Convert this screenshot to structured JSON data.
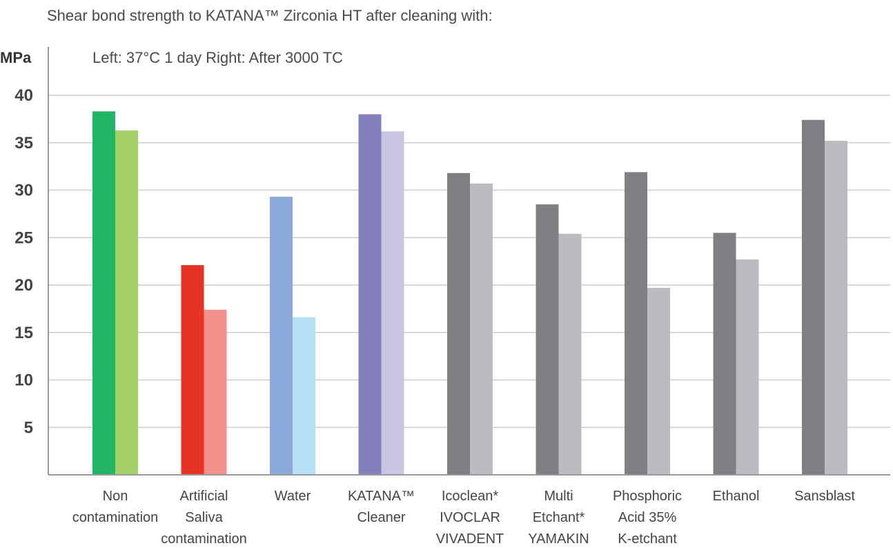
{
  "chart_data": {
    "type": "bar",
    "title": "Shear bond strength to  KATANA™ Zirconia HT after cleaning with:",
    "subtitle": "Left: 37°C 1 day   Right: After 3000 TC",
    "ylabel": "MPa",
    "xlabel": "",
    "ylim": [
      0,
      45
    ],
    "yticks": [
      5,
      10,
      15,
      20,
      25,
      30,
      35,
      40
    ],
    "grid": true,
    "legend": "none",
    "categories": [
      [
        "Non",
        "contamination"
      ],
      [
        "Artificial",
        "Saliva",
        "contamination"
      ],
      [
        "Water"
      ],
      [
        "KATANA™",
        "Cleaner"
      ],
      [
        "Icoclean*",
        "IVOCLAR",
        "VIVADENT"
      ],
      [
        "Multi",
        "Etchant*",
        "YAMAKIN"
      ],
      [
        "Phosphoric",
        "Acid 35%",
        "K-etchant"
      ],
      [
        "Ethanol"
      ],
      [
        "Sansblast"
      ]
    ],
    "series": [
      {
        "values": [
          38.3,
          22.1,
          29.3,
          38.0,
          31.8,
          28.5,
          31.9,
          25.5,
          37.4
        ],
        "colors": [
          "#23b567",
          "#e73325",
          "#8aa8d8",
          "#8480bb",
          "#808084",
          "#808084",
          "#808084",
          "#808084",
          "#808084"
        ]
      },
      {
        "values": [
          36.3,
          17.4,
          16.6,
          36.2,
          30.7,
          25.4,
          19.7,
          22.7,
          35.2
        ],
        "colors": [
          "#a4d067",
          "#f4918a",
          "#b5dff5",
          "#c8c6e2",
          "#bbbcc0",
          "#bbbcc0",
          "#bbbcc0",
          "#bbbcc0",
          "#bbbcc0"
        ]
      }
    ],
    "gridline_color": "#cccccc",
    "axis_color": "#999999"
  }
}
